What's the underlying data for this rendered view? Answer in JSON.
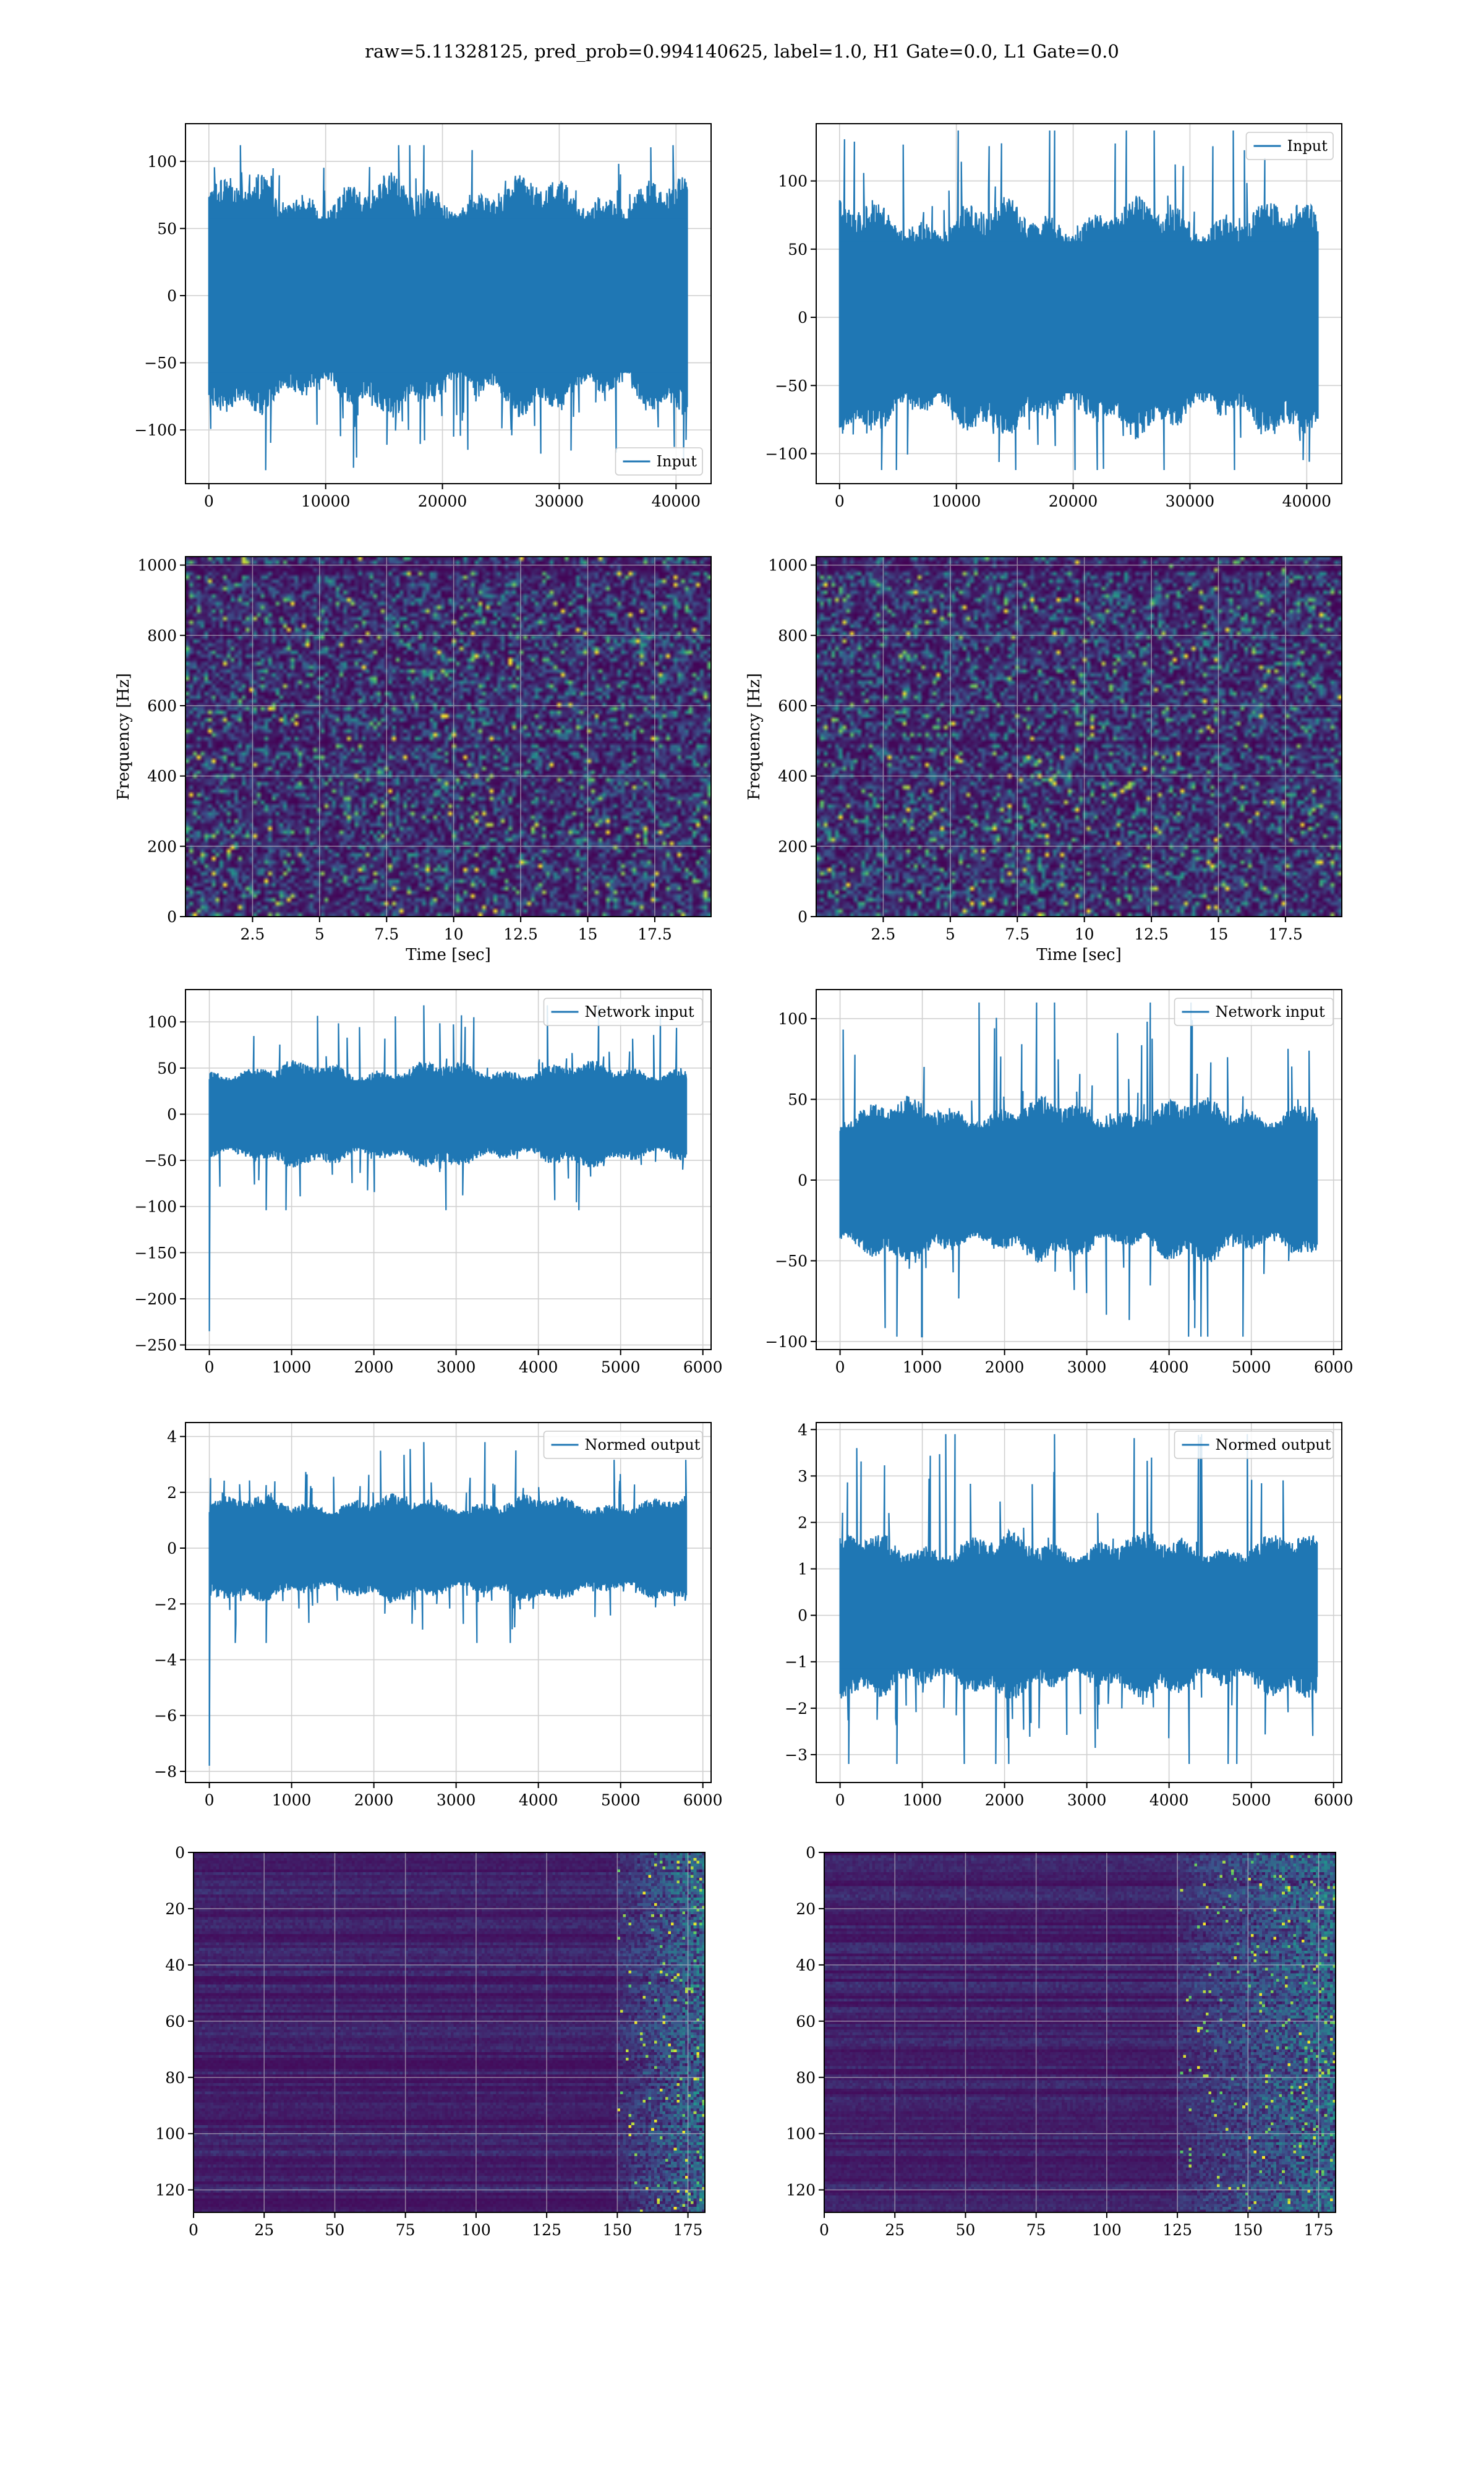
{
  "suptitle": "raw=5.11328125, pred_prob=0.994140625, label=1.0, H1 Gate=0.0, L1 Gate=0.0",
  "colors": {
    "line": "#1f77b4",
    "grid": "#d0d0d0",
    "viridis_dark": "#440154"
  },
  "chart_data": [
    {
      "id": "input_left",
      "type": "line",
      "series": [
        {
          "name": "Input",
          "n_samples": 40960,
          "amplitude": 70,
          "peak_range": [
            -130,
            112
          ]
        }
      ],
      "xlim": [
        -2000,
        43000
      ],
      "ylim": [
        -140,
        128
      ],
      "xticks": [
        0,
        10000,
        20000,
        30000,
        40000
      ],
      "yticks": [
        -100,
        -50,
        0,
        50,
        100
      ],
      "xlabel": "",
      "ylabel": "",
      "legend": "lower right",
      "grid": true
    },
    {
      "id": "input_right",
      "type": "line",
      "series": [
        {
          "name": "Input",
          "n_samples": 40960,
          "amplitude": 68,
          "peak_range": [
            -112,
            137
          ]
        }
      ],
      "xlim": [
        -2000,
        43000
      ],
      "ylim": [
        -122,
        142
      ],
      "xticks": [
        0,
        10000,
        20000,
        30000,
        40000
      ],
      "yticks": [
        -100,
        -50,
        0,
        50,
        100
      ],
      "xlabel": "",
      "ylabel": "",
      "legend": "upper right",
      "grid": true
    },
    {
      "id": "spectrogram_left",
      "type": "heatmap",
      "colormap": "viridis",
      "xlim": [
        0,
        19.6
      ],
      "ylim": [
        0,
        1024
      ],
      "xticks": [
        2.5,
        5.0,
        7.5,
        10.0,
        12.5,
        15.0,
        17.5
      ],
      "yticks": [
        0,
        200,
        400,
        600,
        800,
        1000
      ],
      "xlabel": "Time [sec]",
      "ylabel": "Frequency [Hz]",
      "grid": true
    },
    {
      "id": "spectrogram_right",
      "type": "heatmap",
      "colormap": "viridis",
      "xlim": [
        0,
        19.6
      ],
      "ylim": [
        0,
        1024
      ],
      "xticks": [
        2.5,
        5.0,
        7.5,
        10.0,
        12.5,
        15.0,
        17.5
      ],
      "yticks": [
        0,
        200,
        400,
        600,
        800,
        1000
      ],
      "xlabel": "Time [sec]",
      "ylabel": "Frequency [Hz]",
      "grid": true
    },
    {
      "id": "network_input_left",
      "type": "line",
      "series": [
        {
          "name": "Network input",
          "n_samples": 5800,
          "amplitude": 45,
          "peak_range": [
            -104,
            118
          ],
          "start_spike": -235
        }
      ],
      "xlim": [
        -290,
        6100
      ],
      "ylim": [
        -255,
        135
      ],
      "xticks": [
        0,
        1000,
        2000,
        3000,
        4000,
        5000,
        6000
      ],
      "yticks": [
        -250,
        -200,
        -150,
        -100,
        -50,
        0,
        50,
        100
      ],
      "xlabel": "",
      "ylabel": "",
      "legend": "upper right",
      "grid": true
    },
    {
      "id": "network_input_right",
      "type": "line",
      "series": [
        {
          "name": "Network input",
          "n_samples": 5800,
          "amplitude": 40,
          "peak_range": [
            -97,
            110
          ]
        }
      ],
      "xlim": [
        -290,
        6100
      ],
      "ylim": [
        -105,
        118
      ],
      "xticks": [
        0,
        1000,
        2000,
        3000,
        4000,
        5000,
        6000
      ],
      "yticks": [
        -100,
        -50,
        0,
        50,
        100
      ],
      "xlabel": "",
      "ylabel": "",
      "legend": "upper right",
      "grid": true
    },
    {
      "id": "normed_output_left",
      "type": "line",
      "series": [
        {
          "name": "Normed output",
          "n_samples": 5800,
          "amplitude": 1.5,
          "peak_range": [
            -3.4,
            3.8
          ],
          "start_spike": -7.8
        }
      ],
      "xlim": [
        -290,
        6100
      ],
      "ylim": [
        -8.4,
        4.5
      ],
      "xticks": [
        0,
        1000,
        2000,
        3000,
        4000,
        5000,
        6000
      ],
      "yticks": [
        -8,
        -6,
        -4,
        -2,
        0,
        2,
        4
      ],
      "xlabel": "",
      "ylabel": "",
      "legend": "upper right",
      "grid": true
    },
    {
      "id": "normed_output_right",
      "type": "line",
      "series": [
        {
          "name": "Normed output",
          "n_samples": 5800,
          "amplitude": 1.4,
          "peak_range": [
            -3.2,
            3.9
          ]
        }
      ],
      "xlim": [
        -290,
        6100
      ],
      "ylim": [
        -3.6,
        4.15
      ],
      "xticks": [
        0,
        1000,
        2000,
        3000,
        4000,
        5000,
        6000
      ],
      "yticks": [
        -3,
        -2,
        -1,
        0,
        1,
        2,
        3,
        4
      ],
      "xlabel": "",
      "ylabel": "",
      "legend": "upper right",
      "grid": true
    },
    {
      "id": "features_left",
      "type": "heatmap",
      "colormap": "viridis",
      "rows": 128,
      "cols": 181,
      "xlim": [
        0,
        181
      ],
      "ylim": [
        128,
        0
      ],
      "xticks": [
        0,
        25,
        50,
        75,
        100,
        125,
        150,
        175
      ],
      "yticks": [
        0,
        20,
        40,
        60,
        80,
        100,
        120
      ],
      "hot_columns_from": 150,
      "xlabel": "",
      "ylabel": "",
      "grid": true
    },
    {
      "id": "features_right",
      "type": "heatmap",
      "colormap": "viridis",
      "rows": 128,
      "cols": 181,
      "xlim": [
        0,
        181
      ],
      "ylim": [
        128,
        0
      ],
      "xticks": [
        0,
        25,
        50,
        75,
        100,
        125,
        150,
        175
      ],
      "yticks": [
        0,
        20,
        40,
        60,
        80,
        100,
        120
      ],
      "hot_columns_from": 125,
      "xlabel": "",
      "ylabel": "",
      "grid": true
    }
  ]
}
